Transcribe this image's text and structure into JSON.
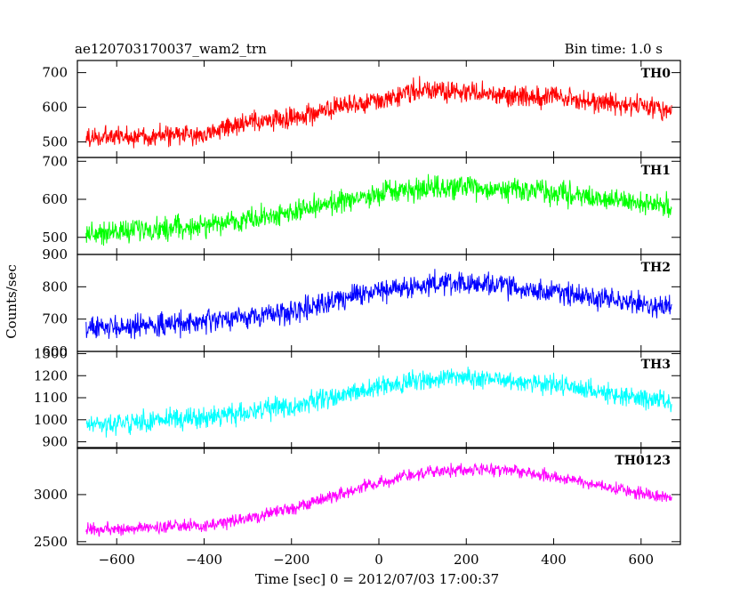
{
  "header": {
    "left_text": "ae120703170037_wam2_trn",
    "right_text": "Bin time: 1.0 s"
  },
  "chart_data": {
    "type": "line",
    "xlabel": "Time [sec] 0 = 2012/07/03 17:00:37",
    "ylabel": "Counts/sec",
    "xlim": [
      -690,
      690
    ],
    "x_ticks": [
      -600,
      -400,
      -200,
      0,
      200,
      400,
      600
    ],
    "x_tick_labels": [
      "−600",
      "−400",
      "−200",
      "0",
      "200",
      "400",
      "600"
    ],
    "x_step": 1.0,
    "x_range_data": [
      -670,
      670
    ],
    "grid": false,
    "panels": [
      {
        "name": "TH0",
        "color": "#ff0000",
        "ylim": [
          455,
          735
        ],
        "y_ticks": [
          500,
          600,
          700
        ],
        "y_tick_labels": [
          "500",
          "600",
          "700"
        ],
        "trend": [
          [
            -670,
            512
          ],
          [
            -400,
            522
          ],
          [
            -330,
            548
          ],
          [
            -200,
            570
          ],
          [
            -100,
            595
          ],
          [
            0,
            620
          ],
          [
            80,
            650
          ],
          [
            200,
            642
          ],
          [
            400,
            628
          ],
          [
            550,
            608
          ],
          [
            670,
            595
          ]
        ],
        "noise_amplitude": 36
      },
      {
        "name": "TH1",
        "color": "#00ff00",
        "ylim": [
          455,
          710
        ],
        "y_ticks": [
          500,
          600,
          700
        ],
        "y_tick_labels": [
          "500",
          "600",
          "700"
        ],
        "trend": [
          [
            -670,
            510
          ],
          [
            -400,
            530
          ],
          [
            -200,
            565
          ],
          [
            -100,
            590
          ],
          [
            0,
            615
          ],
          [
            150,
            630
          ],
          [
            250,
            628
          ],
          [
            400,
            618
          ],
          [
            550,
            595
          ],
          [
            670,
            580
          ]
        ],
        "noise_amplitude": 36
      },
      {
        "name": "TH2",
        "color": "#0000ff",
        "ylim": [
          600,
          900
        ],
        "y_ticks": [
          600,
          700,
          800,
          900
        ],
        "y_tick_labels": [
          "600",
          "700",
          "800",
          "900"
        ],
        "trend": [
          [
            -670,
            670
          ],
          [
            -400,
            690
          ],
          [
            -200,
            725
          ],
          [
            -100,
            760
          ],
          [
            0,
            790
          ],
          [
            150,
            810
          ],
          [
            250,
            805
          ],
          [
            400,
            785
          ],
          [
            550,
            755
          ],
          [
            670,
            735
          ]
        ],
        "noise_amplitude": 42
      },
      {
        "name": "TH3",
        "color": "#00ffff",
        "ylim": [
          870,
          1310
        ],
        "y_ticks": [
          900,
          1000,
          1100,
          1200,
          1300
        ],
        "y_tick_labels": [
          "900",
          "1000",
          "1100",
          "1200",
          "1300"
        ],
        "trend": [
          [
            -670,
            975
          ],
          [
            -400,
            1010
          ],
          [
            -200,
            1060
          ],
          [
            -100,
            1110
          ],
          [
            0,
            1150
          ],
          [
            150,
            1190
          ],
          [
            250,
            1190
          ],
          [
            400,
            1160
          ],
          [
            550,
            1110
          ],
          [
            670,
            1080
          ]
        ],
        "noise_amplitude": 55
      },
      {
        "name": "TH0123",
        "color": "#ff00ff",
        "ylim": [
          2470,
          3500
        ],
        "y_ticks": [
          2500,
          3000
        ],
        "y_tick_labels": [
          "2500",
          "3000"
        ],
        "trend": [
          [
            -670,
            2620
          ],
          [
            -400,
            2670
          ],
          [
            -300,
            2740
          ],
          [
            -200,
            2850
          ],
          [
            -100,
            2990
          ],
          [
            0,
            3130
          ],
          [
            100,
            3230
          ],
          [
            200,
            3270
          ],
          [
            300,
            3260
          ],
          [
            400,
            3190
          ],
          [
            550,
            3060
          ],
          [
            670,
            2960
          ]
        ],
        "noise_amplitude": 80
      }
    ]
  }
}
